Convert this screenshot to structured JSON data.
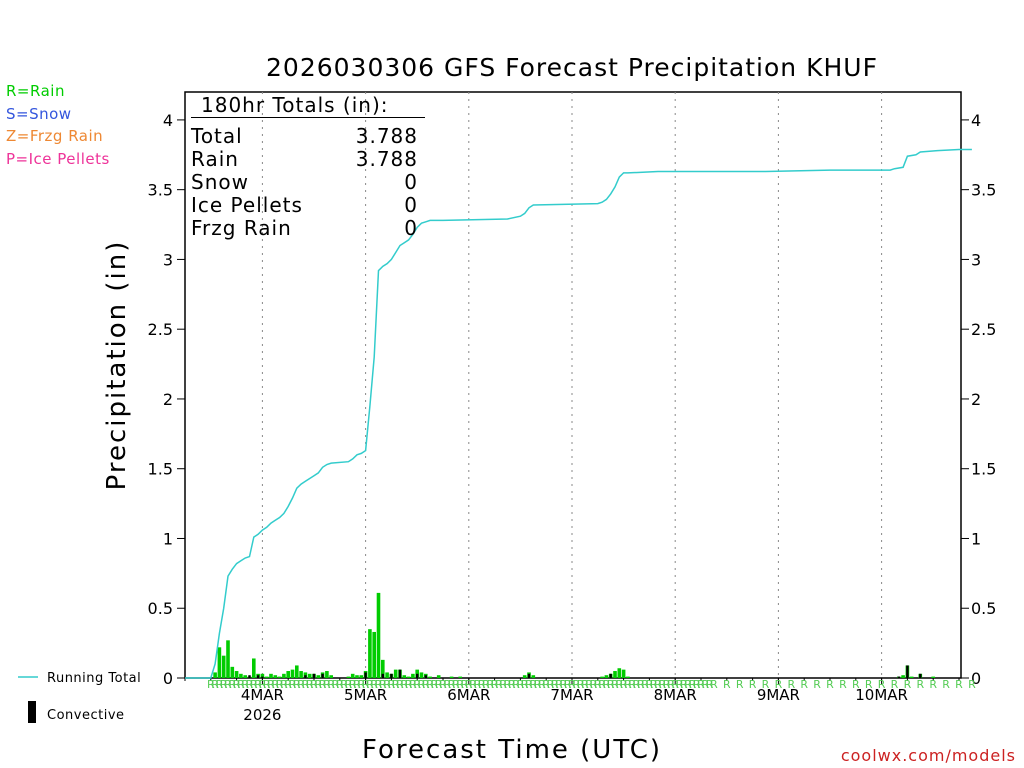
{
  "title": "2026030306 GFS Forecast Precipitation KHUF",
  "type_legend": [
    {
      "label": "R=Rain",
      "color": "#00cc00"
    },
    {
      "label": "S=Snow",
      "color": "#3355dd"
    },
    {
      "label": "Z=Frzg Rain",
      "color": "#ee8833"
    },
    {
      "label": "P=Ice Pellets",
      "color": "#ee3399"
    }
  ],
  "totals": {
    "header": "180hr Totals (in):",
    "rows": [
      {
        "label": "Total",
        "value": "3.788"
      },
      {
        "label": "Rain",
        "value": "3.788"
      },
      {
        "label": "Snow",
        "value": "0"
      },
      {
        "label": "Ice Pellets",
        "value": "0"
      },
      {
        "label": "Frzg Rain",
        "value": "0"
      }
    ]
  },
  "series_legend": {
    "running_total": "Running Total",
    "convective": "Convective"
  },
  "footer": {
    "credit": "coolwx.com/models"
  },
  "colors": {
    "running_total": "#33cccc",
    "precip_bar": "#00cc00",
    "convective_bar": "#000000",
    "rain_marker": "#55cc55",
    "credit": "#cc2222",
    "grid": "#888888"
  },
  "chart_data": {
    "type": "bar",
    "title": "2026030306 GFS Forecast Precipitation KHUF",
    "xlabel": "Forecast Time (UTC)",
    "ylabel": "Precipitation (in)",
    "x_unit": "forecast hour",
    "xlim": [
      0,
      186
    ],
    "ylim": [
      0,
      4.2
    ],
    "yticks": [
      0,
      0.5,
      1,
      1.5,
      2,
      2.5,
      3,
      3.5,
      4
    ],
    "ytick_labels": [
      "0",
      "0.5",
      "1",
      "1.5",
      "2",
      "2.5",
      "3",
      "3.5",
      "4"
    ],
    "day_ticks": [
      {
        "hour": 18,
        "label": "4MAR",
        "sublabel": "2026"
      },
      {
        "hour": 42,
        "label": "5MAR"
      },
      {
        "hour": 66,
        "label": "6MAR"
      },
      {
        "hour": 90,
        "label": "7MAR"
      },
      {
        "hour": 114,
        "label": "8MAR"
      },
      {
        "hour": 138,
        "label": "9MAR"
      },
      {
        "hour": 162,
        "label": "10MAR"
      }
    ],
    "hourly_precip": [
      {
        "h": 6,
        "v": 0.0
      },
      {
        "h": 7,
        "v": 0.04
      },
      {
        "h": 8,
        "v": 0.22
      },
      {
        "h": 9,
        "v": 0.16
      },
      {
        "h": 10,
        "v": 0.27
      },
      {
        "h": 11,
        "v": 0.08
      },
      {
        "h": 12,
        "v": 0.05
      },
      {
        "h": 13,
        "v": 0.03
      },
      {
        "h": 14,
        "v": 0.02
      },
      {
        "h": 15,
        "v": 0.01
      },
      {
        "h": 16,
        "v": 0.14
      },
      {
        "h": 17,
        "v": 0.03
      },
      {
        "h": 18,
        "v": 0.03
      },
      {
        "h": 19,
        "v": 0.01
      },
      {
        "h": 20,
        "v": 0.03
      },
      {
        "h": 21,
        "v": 0.02
      },
      {
        "h": 22,
        "v": 0.01
      },
      {
        "h": 23,
        "v": 0.03
      },
      {
        "h": 24,
        "v": 0.05
      },
      {
        "h": 25,
        "v": 0.06
      },
      {
        "h": 26,
        "v": 0.09
      },
      {
        "h": 27,
        "v": 0.05
      },
      {
        "h": 28,
        "v": 0.04
      },
      {
        "h": 29,
        "v": 0.03
      },
      {
        "h": 30,
        "v": 0.03
      },
      {
        "h": 31,
        "v": 0.02
      },
      {
        "h": 32,
        "v": 0.04
      },
      {
        "h": 33,
        "v": 0.05
      },
      {
        "h": 34,
        "v": 0.02
      },
      {
        "h": 38,
        "v": 0.01
      },
      {
        "h": 39,
        "v": 0.03
      },
      {
        "h": 40,
        "v": 0.02
      },
      {
        "h": 41,
        "v": 0.02
      },
      {
        "h": 42,
        "v": 0.05
      },
      {
        "h": 43,
        "v": 0.35
      },
      {
        "h": 44,
        "v": 0.33
      },
      {
        "h": 45,
        "v": 0.61
      },
      {
        "h": 46,
        "v": 0.13
      },
      {
        "h": 47,
        "v": 0.04
      },
      {
        "h": 48,
        "v": 0.03
      },
      {
        "h": 49,
        "v": 0.06
      },
      {
        "h": 50,
        "v": 0.06
      },
      {
        "h": 51,
        "v": 0.02
      },
      {
        "h": 52,
        "v": 0.01
      },
      {
        "h": 53,
        "v": 0.03
      },
      {
        "h": 54,
        "v": 0.06
      },
      {
        "h": 55,
        "v": 0.04
      },
      {
        "h": 56,
        "v": 0.03
      },
      {
        "h": 57,
        "v": 0.01
      },
      {
        "h": 59,
        "v": 0.02
      },
      {
        "h": 62,
        "v": 0.01
      },
      {
        "h": 64,
        "v": 0.01
      },
      {
        "h": 79,
        "v": 0.02
      },
      {
        "h": 80,
        "v": 0.04
      },
      {
        "h": 81,
        "v": 0.02
      },
      {
        "h": 97,
        "v": 0.01
      },
      {
        "h": 98,
        "v": 0.02
      },
      {
        "h": 99,
        "v": 0.03
      },
      {
        "h": 100,
        "v": 0.05
      },
      {
        "h": 101,
        "v": 0.07
      },
      {
        "h": 102,
        "v": 0.06
      },
      {
        "h": 103,
        "v": 0.01
      },
      {
        "h": 166,
        "v": 0.01
      },
      {
        "h": 167,
        "v": 0.02
      },
      {
        "h": 168,
        "v": 0.09
      },
      {
        "h": 169,
        "v": 0.01
      },
      {
        "h": 171,
        "v": 0.03
      },
      {
        "h": 174,
        "v": 0.01
      }
    ],
    "convective_precip": [
      {
        "h": 15,
        "v": 0.02
      },
      {
        "h": 17,
        "v": 0.02
      },
      {
        "h": 18,
        "v": 0.01
      },
      {
        "h": 28,
        "v": 0.02
      },
      {
        "h": 30,
        "v": 0.03
      },
      {
        "h": 32,
        "v": 0.03
      },
      {
        "h": 42,
        "v": 0.04
      },
      {
        "h": 46,
        "v": 0.03
      },
      {
        "h": 48,
        "v": 0.03
      },
      {
        "h": 50,
        "v": 0.06
      },
      {
        "h": 54,
        "v": 0.03
      },
      {
        "h": 56,
        "v": 0.02
      },
      {
        "h": 80,
        "v": 0.03
      },
      {
        "h": 99,
        "v": 0.03
      },
      {
        "h": 166,
        "v": 0.01
      },
      {
        "h": 168,
        "v": 0.09
      },
      {
        "h": 171,
        "v": 0.03
      }
    ],
    "running_total": [
      {
        "h": 6,
        "v": 0.0
      },
      {
        "h": 7,
        "v": 0.1
      },
      {
        "h": 8,
        "v": 0.32
      },
      {
        "h": 9,
        "v": 0.5
      },
      {
        "h": 10,
        "v": 0.73
      },
      {
        "h": 11,
        "v": 0.78
      },
      {
        "h": 12,
        "v": 0.82
      },
      {
        "h": 13,
        "v": 0.84
      },
      {
        "h": 14,
        "v": 0.86
      },
      {
        "h": 15,
        "v": 0.87
      },
      {
        "h": 16,
        "v": 1.01
      },
      {
        "h": 17,
        "v": 1.03
      },
      {
        "h": 18,
        "v": 1.06
      },
      {
        "h": 19,
        "v": 1.08
      },
      {
        "h": 20,
        "v": 1.11
      },
      {
        "h": 21,
        "v": 1.13
      },
      {
        "h": 22,
        "v": 1.15
      },
      {
        "h": 23,
        "v": 1.18
      },
      {
        "h": 24,
        "v": 1.23
      },
      {
        "h": 25,
        "v": 1.29
      },
      {
        "h": 26,
        "v": 1.36
      },
      {
        "h": 27,
        "v": 1.39
      },
      {
        "h": 28,
        "v": 1.41
      },
      {
        "h": 29,
        "v": 1.43
      },
      {
        "h": 30,
        "v": 1.45
      },
      {
        "h": 31,
        "v": 1.47
      },
      {
        "h": 32,
        "v": 1.51
      },
      {
        "h": 33,
        "v": 1.53
      },
      {
        "h": 34,
        "v": 1.54
      },
      {
        "h": 38,
        "v": 1.55
      },
      {
        "h": 39,
        "v": 1.57
      },
      {
        "h": 40,
        "v": 1.6
      },
      {
        "h": 41,
        "v": 1.61
      },
      {
        "h": 42,
        "v": 1.63
      },
      {
        "h": 43,
        "v": 1.95
      },
      {
        "h": 44,
        "v": 2.3
      },
      {
        "h": 45,
        "v": 2.92
      },
      {
        "h": 46,
        "v": 2.95
      },
      {
        "h": 47,
        "v": 2.97
      },
      {
        "h": 48,
        "v": 3.0
      },
      {
        "h": 49,
        "v": 3.05
      },
      {
        "h": 50,
        "v": 3.1
      },
      {
        "h": 51,
        "v": 3.12
      },
      {
        "h": 52,
        "v": 3.14
      },
      {
        "h": 53,
        "v": 3.18
      },
      {
        "h": 54,
        "v": 3.23
      },
      {
        "h": 55,
        "v": 3.26
      },
      {
        "h": 56,
        "v": 3.27
      },
      {
        "h": 57,
        "v": 3.28
      },
      {
        "h": 60,
        "v": 3.28
      },
      {
        "h": 75,
        "v": 3.29
      },
      {
        "h": 78,
        "v": 3.31
      },
      {
        "h": 79,
        "v": 3.33
      },
      {
        "h": 80,
        "v": 3.37
      },
      {
        "h": 81,
        "v": 3.39
      },
      {
        "h": 96,
        "v": 3.4
      },
      {
        "h": 97,
        "v": 3.41
      },
      {
        "h": 98,
        "v": 3.43
      },
      {
        "h": 99,
        "v": 3.47
      },
      {
        "h": 100,
        "v": 3.52
      },
      {
        "h": 101,
        "v": 3.59
      },
      {
        "h": 102,
        "v": 3.62
      },
      {
        "h": 103,
        "v": 3.62
      },
      {
        "h": 110,
        "v": 3.63
      },
      {
        "h": 135,
        "v": 3.63
      },
      {
        "h": 150,
        "v": 3.64
      },
      {
        "h": 164,
        "v": 3.64
      },
      {
        "h": 165,
        "v": 3.65
      },
      {
        "h": 167,
        "v": 3.66
      },
      {
        "h": 168,
        "v": 3.74
      },
      {
        "h": 170,
        "v": 3.75
      },
      {
        "h": 171,
        "v": 3.77
      },
      {
        "h": 175,
        "v": 3.78
      },
      {
        "h": 180,
        "v": 3.788
      },
      {
        "h": 183,
        "v": 3.788
      }
    ],
    "type_marker": "R",
    "type_marker_hours": [
      6,
      7,
      8,
      9,
      10,
      11,
      12,
      13,
      14,
      15,
      16,
      17,
      18,
      19,
      20,
      21,
      22,
      23,
      24,
      25,
      26,
      27,
      28,
      29,
      30,
      31,
      32,
      33,
      34,
      35,
      36,
      37,
      38,
      39,
      40,
      41,
      42,
      43,
      44,
      45,
      46,
      47,
      48,
      49,
      50,
      51,
      52,
      53,
      54,
      55,
      56,
      57,
      58,
      59,
      60,
      61,
      62,
      63,
      64,
      65,
      66,
      67,
      68,
      69,
      70,
      71,
      72,
      73,
      74,
      75,
      76,
      77,
      78,
      79,
      80,
      81,
      82,
      83,
      84,
      85,
      86,
      87,
      88,
      89,
      90,
      91,
      92,
      93,
      94,
      95,
      96,
      97,
      98,
      99,
      100,
      101,
      102,
      103,
      104,
      105,
      106,
      107,
      108,
      109,
      110,
      111,
      112,
      113,
      114,
      115,
      116,
      117,
      118,
      119,
      120,
      121,
      122,
      123,
      126,
      129,
      132,
      135,
      138,
      141,
      144,
      147,
      150,
      153,
      156,
      159,
      162,
      165,
      168,
      171,
      174,
      177,
      180,
      183
    ]
  }
}
